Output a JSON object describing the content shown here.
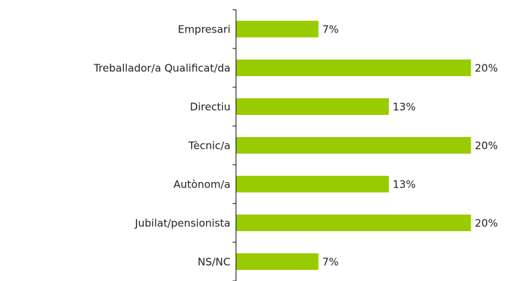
{
  "chart_data": {
    "type": "bar",
    "orientation": "horizontal",
    "categories": [
      "Empresari",
      "Treballador/a Qualificat/da",
      "Directiu",
      "Tècnic/a",
      "Autònom/a",
      "Jubilat/pensionista",
      "NS/NC"
    ],
    "values": [
      7,
      20,
      13,
      20,
      13,
      20,
      7
    ],
    "value_labels": [
      "7%",
      "20%",
      "13%",
      "20%",
      "13%",
      "20%",
      "7%"
    ],
    "color": "#99cc00"
  }
}
